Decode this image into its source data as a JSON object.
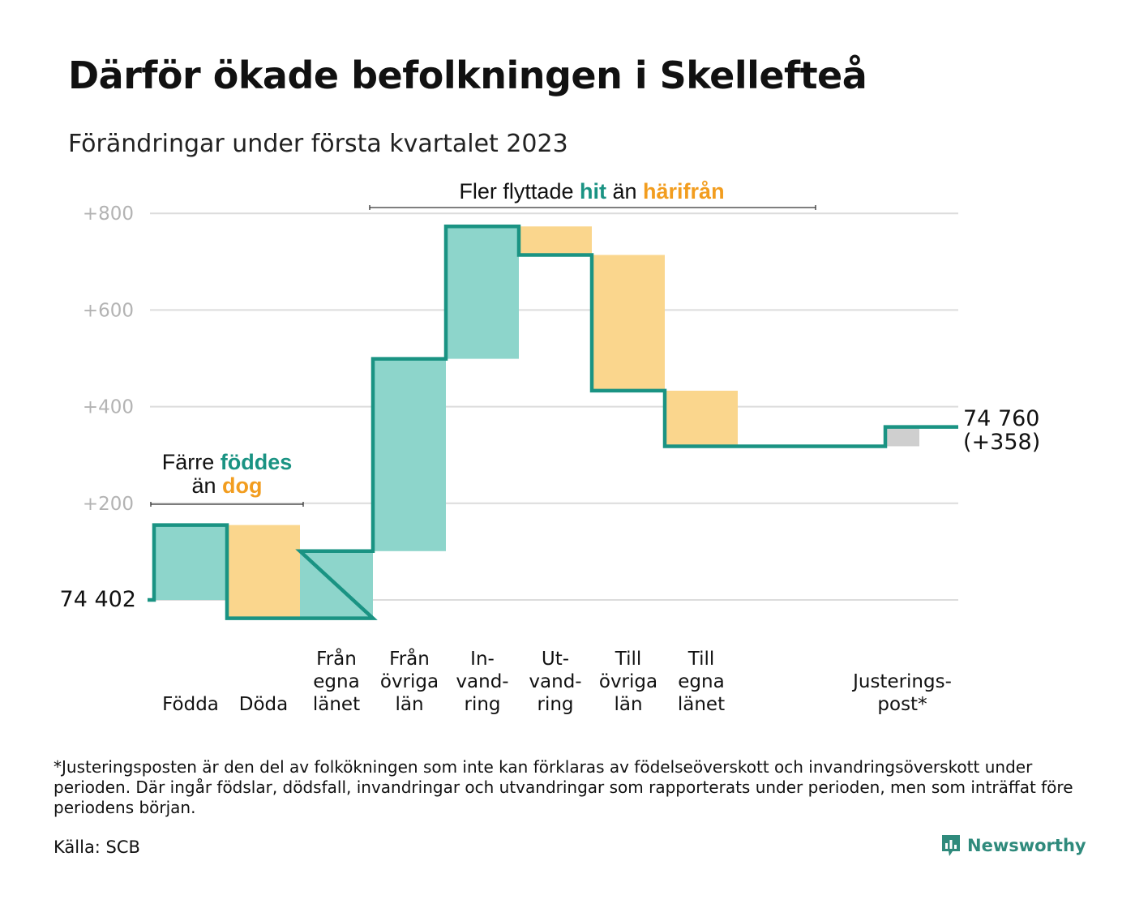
{
  "title": "Därför ökade befolkningen i Skellefteå",
  "subtitle": "Förändringar under första kvartalet 2023",
  "colors": {
    "increase": "#8dd5cb",
    "decrease": "#fad68d",
    "adjustment": "#cfcfcf",
    "line": "#1a9383",
    "grid": "#dcdcdc",
    "teal_text": "#1a9383",
    "orange_text": "#f29d1f"
  },
  "chart_data": {
    "type": "waterfall",
    "base_population": 74402,
    "start_label": "74 402",
    "end_label": "74 760",
    "end_change_label": "(+358)",
    "ylim": [
      -40,
      820
    ],
    "yticks": [
      {
        "value": 200,
        "label": "+200"
      },
      {
        "value": 400,
        "label": "+400"
      },
      {
        "value": 600,
        "label": "+600"
      },
      {
        "value": 800,
        "label": "+800"
      }
    ],
    "grid": true,
    "steps": [
      {
        "category": [
          "Födda"
        ],
        "value": 155,
        "kind": "increase"
      },
      {
        "category": [
          "Döda"
        ],
        "value": -193,
        "kind": "decrease"
      },
      {
        "category": [
          "Från",
          "egna",
          "länet"
        ],
        "value": 139,
        "kind": "increase"
      },
      {
        "category": [
          "Från",
          "övriga",
          "län"
        ],
        "value": 398,
        "kind": "increase"
      },
      {
        "category": [
          "In-",
          "vand-",
          "ring"
        ],
        "value": 274,
        "kind": "increase"
      },
      {
        "category": [
          "Ut-",
          "vand-",
          "ring"
        ],
        "value": -59,
        "kind": "decrease"
      },
      {
        "category": [
          "Till",
          "övriga",
          "län"
        ],
        "value": -281,
        "kind": "decrease"
      },
      {
        "category": [
          "Till",
          "egna",
          "länet"
        ],
        "value": -115,
        "kind": "decrease"
      },
      {
        "category": [
          "Justerings-",
          "post*"
        ],
        "value": 40,
        "kind": "adjustment"
      }
    ],
    "annotations": [
      {
        "parts": [
          "Färre ",
          "föddes"
        ],
        "parts2": [
          "än ",
          "dog"
        ]
      },
      {
        "parts": [
          "Fler flyttade ",
          "hit",
          " än ",
          "härifrån"
        ]
      }
    ]
  },
  "footnote": "*Justeringsposten är den del av folkökningen som inte kan förklaras av födelseöverskott och invandringsöverskott under perioden. Där ingår födslar, dödsfall, invandringar och utvandringar som rapporterats under perioden, men som inträffat före periodens början.",
  "source": "Källa: SCB",
  "brand": {
    "name": "Newsworthy",
    "icon": "newsworthy-logo-icon"
  }
}
